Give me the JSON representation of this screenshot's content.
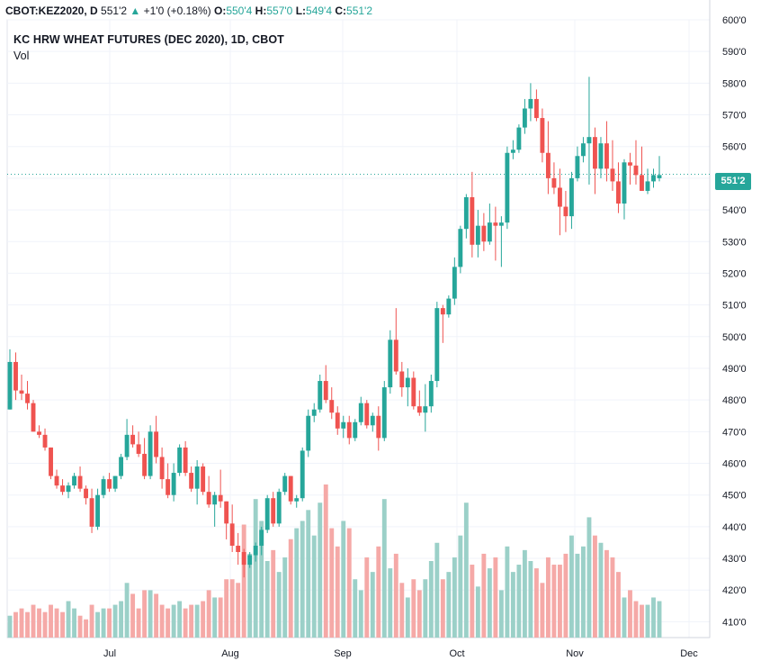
{
  "header": {
    "symbol": "CBOT:KEZ2020, D",
    "last": "551'2",
    "change_icon": "triangle-up-icon",
    "change": "+1'0 (+0.18%)",
    "open_label": "O:",
    "open": "550'4",
    "high_label": "H:",
    "high": "557'0",
    "low_label": "L:",
    "low": "549'4",
    "close_label": "C:",
    "close": "551'2"
  },
  "title": "KC HRW WHEAT FUTURES (DEC 2020), 1D, CBOT",
  "vol_label": "Vol",
  "last_price_label": "551'2",
  "colors": {
    "up": "#26a69a",
    "down": "#ef5350",
    "vol_up": "#9bd0c8",
    "vol_down": "#f5a9a7",
    "grid": "#f0f3fa"
  },
  "chart_data": {
    "type": "candlestick",
    "title": "KC HRW WHEAT FUTURES (DEC 2020), 1D, CBOT",
    "y_axis": {
      "range": [
        405,
        600
      ],
      "ticks": [
        410,
        420,
        430,
        440,
        450,
        460,
        470,
        480,
        490,
        500,
        510,
        520,
        530,
        540,
        550,
        560,
        570,
        580,
        590,
        600
      ],
      "tick_labels": [
        "410'0",
        "420'0",
        "430'0",
        "440'0",
        "450'0",
        "460'0",
        "470'0",
        "480'0",
        "490'0",
        "500'0",
        "510'0",
        "520'0",
        "530'0",
        "540'0",
        "550'0",
        "560'0",
        "570'0",
        "580'0",
        "590'0",
        "600'0"
      ]
    },
    "x_axis": {
      "tick_labels": [
        "Jul",
        "Aug",
        "Sep",
        "Oct",
        "Nov",
        "Dec"
      ]
    },
    "last_price": 551.25,
    "grid": true,
    "candles_ohlc": [
      [
        477,
        496,
        477,
        492
      ],
      [
        492,
        495,
        480,
        483
      ],
      [
        483,
        488,
        480,
        482
      ],
      [
        482,
        486,
        477,
        479
      ],
      [
        479,
        480,
        470,
        470
      ],
      [
        470,
        472,
        468,
        469
      ],
      [
        469,
        471,
        464,
        465
      ],
      [
        465,
        465,
        455,
        456
      ],
      [
        456,
        458,
        452,
        453
      ],
      [
        453,
        455,
        450,
        451
      ],
      [
        451,
        454,
        449,
        453
      ],
      [
        453,
        457,
        452,
        456
      ],
      [
        456,
        459,
        451,
        452
      ],
      [
        452,
        453,
        447,
        449
      ],
      [
        449,
        452,
        438,
        440
      ],
      [
        440,
        452,
        439,
        450
      ],
      [
        450,
        456,
        449,
        455
      ],
      [
        455,
        457,
        451,
        452
      ],
      [
        452,
        456,
        451,
        456
      ],
      [
        456,
        463,
        455,
        462
      ],
      [
        462,
        474,
        461,
        469
      ],
      [
        469,
        472,
        465,
        466
      ],
      [
        466,
        470,
        462,
        463
      ],
      [
        463,
        468,
        455,
        456
      ],
      [
        456,
        472,
        455,
        470
      ],
      [
        470,
        475,
        460,
        462
      ],
      [
        462,
        465,
        452,
        455
      ],
      [
        455,
        460,
        449,
        450
      ],
      [
        450,
        460,
        448,
        457
      ],
      [
        457,
        466,
        456,
        465
      ],
      [
        465,
        467,
        456,
        457
      ],
      [
        457,
        459,
        451,
        452
      ],
      [
        452,
        461,
        447,
        459
      ],
      [
        459,
        460,
        450,
        451
      ],
      [
        451,
        456,
        446,
        447
      ],
      [
        447,
        451,
        440,
        450
      ],
      [
        450,
        458,
        446,
        448
      ],
      [
        448,
        448,
        436,
        441
      ],
      [
        441,
        447,
        432,
        434
      ],
      [
        434,
        438,
        428,
        432
      ],
      [
        432,
        433,
        424,
        428
      ],
      [
        428,
        432,
        427,
        431
      ],
      [
        431,
        435,
        429,
        434
      ],
      [
        434,
        440,
        431,
        439
      ],
      [
        439,
        450,
        438,
        449
      ],
      [
        449,
        451,
        440,
        441
      ],
      [
        441,
        452,
        440,
        451
      ],
      [
        451,
        457,
        450,
        456
      ],
      [
        456,
        456,
        447,
        448
      ],
      [
        448,
        450,
        446,
        449
      ],
      [
        449,
        465,
        448,
        464
      ],
      [
        464,
        477,
        462,
        475
      ],
      [
        475,
        479,
        473,
        477
      ],
      [
        477,
        488,
        476,
        486
      ],
      [
        486,
        491,
        479,
        480
      ],
      [
        480,
        484,
        474,
        476
      ],
      [
        476,
        478,
        469,
        471
      ],
      [
        471,
        475,
        468,
        473
      ],
      [
        473,
        475,
        466,
        468
      ],
      [
        468,
        474,
        467,
        473
      ],
      [
        473,
        481,
        472,
        479
      ],
      [
        479,
        480,
        471,
        472
      ],
      [
        472,
        476,
        470,
        475
      ],
      [
        475,
        478,
        464,
        468
      ],
      [
        468,
        486,
        467,
        484
      ],
      [
        484,
        502,
        482,
        499
      ],
      [
        499,
        509,
        488,
        489
      ],
      [
        489,
        492,
        481,
        484
      ],
      [
        484,
        490,
        478,
        487
      ],
      [
        487,
        489,
        477,
        478
      ],
      [
        478,
        483,
        475,
        476
      ],
      [
        476,
        485,
        470,
        478
      ],
      [
        478,
        488,
        476,
        486
      ],
      [
        486,
        511,
        484,
        509
      ],
      [
        509,
        510,
        498,
        507
      ],
      [
        507,
        513,
        506,
        512
      ],
      [
        512,
        525,
        510,
        522
      ],
      [
        522,
        535,
        520,
        534
      ],
      [
        534,
        545,
        531,
        544
      ],
      [
        544,
        552,
        525,
        529
      ],
      [
        529,
        540,
        525,
        535
      ],
      [
        535,
        539,
        527,
        530
      ],
      [
        530,
        542,
        529,
        536
      ],
      [
        536,
        541,
        524,
        535
      ],
      [
        535,
        538,
        522,
        536
      ],
      [
        536,
        560,
        534,
        558
      ],
      [
        558,
        562,
        556,
        559
      ],
      [
        559,
        567,
        558,
        566
      ],
      [
        566,
        575,
        564,
        572
      ],
      [
        572,
        580,
        568,
        575
      ],
      [
        575,
        578,
        568,
        569
      ],
      [
        569,
        572,
        555,
        558
      ],
      [
        558,
        568,
        545,
        550
      ],
      [
        550,
        555,
        545,
        547
      ],
      [
        547,
        553,
        532,
        541
      ],
      [
        541,
        546,
        533,
        538
      ],
      [
        538,
        552,
        534,
        550
      ],
      [
        550,
        560,
        549,
        557
      ],
      [
        557,
        563,
        555,
        561
      ],
      [
        561,
        582,
        548,
        563
      ],
      [
        563,
        566,
        545,
        553
      ],
      [
        553,
        563,
        550,
        561
      ],
      [
        561,
        568,
        549,
        553
      ],
      [
        553,
        562,
        546,
        549
      ],
      [
        549,
        555,
        539,
        542
      ],
      [
        542,
        556,
        537,
        555
      ],
      [
        555,
        558,
        548,
        554
      ],
      [
        554,
        562,
        548,
        551
      ],
      [
        551,
        560,
        546,
        546
      ],
      [
        546,
        553,
        545,
        549
      ],
      [
        549,
        553,
        547,
        551
      ],
      [
        550,
        557,
        549,
        551
      ]
    ],
    "volume_relative": [
      0.06,
      0.07,
      0.08,
      0.07,
      0.09,
      0.08,
      0.07,
      0.09,
      0.08,
      0.07,
      0.1,
      0.08,
      0.06,
      0.05,
      0.09,
      0.07,
      0.08,
      0.08,
      0.09,
      0.1,
      0.15,
      0.12,
      0.08,
      0.13,
      0.13,
      0.12,
      0.09,
      0.08,
      0.09,
      0.1,
      0.08,
      0.09,
      0.09,
      0.1,
      0.13,
      0.11,
      0.11,
      0.16,
      0.16,
      0.15,
      0.31,
      0.23,
      0.38,
      0.32,
      0.21,
      0.24,
      0.18,
      0.22,
      0.27,
      0.3,
      0.32,
      0.35,
      0.28,
      0.37,
      0.42,
      0.3,
      0.25,
      0.32,
      0.3,
      0.16,
      0.13,
      0.22,
      0.18,
      0.25,
      0.38,
      0.19,
      0.23,
      0.15,
      0.11,
      0.16,
      0.13,
      0.16,
      0.21,
      0.26,
      0.16,
      0.18,
      0.22,
      0.28,
      0.37,
      0.2,
      0.14,
      0.23,
      0.19,
      0.22,
      0.13,
      0.25,
      0.18,
      0.2,
      0.24,
      0.21,
      0.19,
      0.15,
      0.22,
      0.2,
      0.2,
      0.23,
      0.28,
      0.23,
      0.25,
      0.33,
      0.28,
      0.26,
      0.24,
      0.22,
      0.18,
      0.11,
      0.13,
      0.1,
      0.09,
      0.09,
      0.11,
      0.1
    ]
  }
}
